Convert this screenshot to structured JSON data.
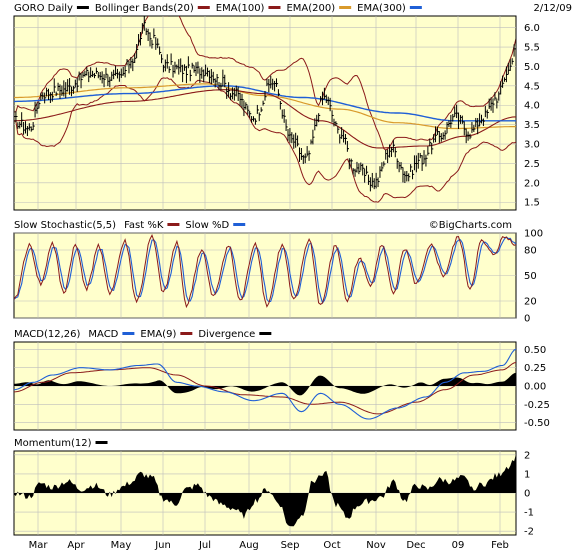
{
  "chart_data": {
    "type": "line",
    "date": "2/12/09",
    "watermark": "©BigCharts.com",
    "x_labels": [
      "Mar",
      "Apr",
      "May",
      "Jun",
      "Jul",
      "Aug",
      "Sep",
      "Oct",
      "Nov",
      "Dec",
      "09",
      "Feb"
    ],
    "colors": {
      "panel_bg": "#ffffcc",
      "grid": "#bdbdbd",
      "bollinger": "#8b1a1a",
      "ema100": "#8b1a1a",
      "ema200": "#d99a2b",
      "ema300": "#1f5fd6",
      "fast_k": "#8b1a1a",
      "slow_d": "#1f5fd6",
      "macd": "#1f5fd6",
      "macd_ema": "#8b1a1a",
      "divergence": "#000000",
      "momentum": "#000000"
    },
    "panels": [
      {
        "id": "price",
        "legend": [
          {
            "text": "GORO Daily",
            "swatch": "#000000"
          },
          {
            "text": "Bollinger Bands(20)",
            "swatch": "#8b1a1a"
          },
          {
            "text": "EMA(100)",
            "swatch": "#8b1a1a"
          },
          {
            "text": "EMA(200)",
            "swatch": "#d99a2b"
          },
          {
            "text": "EMA(300)",
            "swatch": "#1f5fd6"
          }
        ],
        "ymin": 1.3,
        "ymax": 6.3,
        "ticks": [
          1.5,
          2.0,
          2.5,
          3.0,
          3.5,
          4.0,
          4.5,
          5.0,
          5.5,
          6.0
        ],
        "tick_labels": [
          "1.5",
          "2.0",
          "2.5",
          "3.0",
          "3.5",
          "4.0",
          "4.5",
          "5.0",
          "5.5",
          "6.0"
        ],
        "close_anchors": [
          [
            0,
            3.6
          ],
          [
            8,
            3.4
          ],
          [
            15,
            4.3
          ],
          [
            25,
            4.4
          ],
          [
            40,
            4.8
          ],
          [
            55,
            4.7
          ],
          [
            62,
            5.2
          ],
          [
            68,
            6.0
          ],
          [
            72,
            5.7
          ],
          [
            80,
            5.0
          ],
          [
            90,
            4.9
          ],
          [
            100,
            4.9
          ],
          [
            108,
            4.6
          ],
          [
            115,
            4.3
          ],
          [
            125,
            3.7
          ],
          [
            135,
            4.6
          ],
          [
            145,
            3.1
          ],
          [
            152,
            2.6
          ],
          [
            162,
            4.2
          ],
          [
            170,
            3.3
          ],
          [
            178,
            2.4
          ],
          [
            188,
            2.0
          ],
          [
            197,
            2.9
          ],
          [
            205,
            2.2
          ],
          [
            212,
            2.6
          ],
          [
            222,
            3.2
          ],
          [
            230,
            3.7
          ],
          [
            238,
            3.3
          ],
          [
            245,
            3.7
          ],
          [
            252,
            4.2
          ],
          [
            258,
            4.9
          ],
          [
            262,
            5.6
          ]
        ],
        "ema300_anchors": [
          [
            0,
            4.1
          ],
          [
            60,
            4.3
          ],
          [
            110,
            4.5
          ],
          [
            150,
            4.2
          ],
          [
            200,
            3.8
          ],
          [
            230,
            3.6
          ],
          [
            262,
            3.6
          ]
        ],
        "ema200_anchors": [
          [
            0,
            4.2
          ],
          [
            60,
            4.45
          ],
          [
            100,
            4.55
          ],
          [
            130,
            4.25
          ],
          [
            170,
            3.9
          ],
          [
            200,
            3.55
          ],
          [
            230,
            3.4
          ],
          [
            262,
            3.45
          ]
        ],
        "ema100_anchors": [
          [
            0,
            3.6
          ],
          [
            60,
            4.1
          ],
          [
            110,
            4.4
          ],
          [
            130,
            4.3
          ],
          [
            160,
            3.6
          ],
          [
            190,
            2.9
          ],
          [
            215,
            2.95
          ],
          [
            235,
            3.2
          ],
          [
            262,
            3.7
          ]
        ]
      },
      {
        "id": "stochastic",
        "legend": [
          {
            "text": "Slow Stochastic(5,5)",
            "swatch": null
          },
          {
            "text": "Fast %K",
            "swatch": "#8b1a1a"
          },
          {
            "text": "Slow %D",
            "swatch": "#1f5fd6"
          }
        ],
        "ymin": 0,
        "ymax": 100,
        "ticks": [
          0,
          20,
          50,
          80,
          100
        ],
        "tick_labels": [
          "0",
          "20",
          "50",
          "80",
          "100"
        ],
        "cycles": [
          [
            0,
            20
          ],
          [
            8,
            85
          ],
          [
            14,
            40
          ],
          [
            20,
            88
          ],
          [
            26,
            30
          ],
          [
            32,
            85
          ],
          [
            38,
            35
          ],
          [
            44,
            85
          ],
          [
            50,
            30
          ],
          [
            58,
            90
          ],
          [
            64,
            20
          ],
          [
            72,
            95
          ],
          [
            78,
            30
          ],
          [
            85,
            88
          ],
          [
            90,
            15
          ],
          [
            98,
            80
          ],
          [
            104,
            25
          ],
          [
            112,
            85
          ],
          [
            118,
            20
          ],
          [
            126,
            88
          ],
          [
            132,
            15
          ],
          [
            140,
            85
          ],
          [
            146,
            20
          ],
          [
            154,
            92
          ],
          [
            160,
            15
          ],
          [
            168,
            85
          ],
          [
            174,
            20
          ],
          [
            180,
            70
          ],
          [
            186,
            40
          ],
          [
            192,
            85
          ],
          [
            198,
            30
          ],
          [
            204,
            80
          ],
          [
            210,
            40
          ],
          [
            218,
            85
          ],
          [
            224,
            50
          ],
          [
            232,
            95
          ],
          [
            238,
            35
          ],
          [
            244,
            90
          ],
          [
            250,
            75
          ],
          [
            256,
            95
          ],
          [
            262,
            88
          ]
        ]
      },
      {
        "id": "macd",
        "legend": [
          {
            "text": "MACD(12,26)",
            "swatch": null
          },
          {
            "text": "MACD",
            "swatch": "#1f5fd6"
          },
          {
            "text": "EMA(9)",
            "swatch": "#8b1a1a"
          },
          {
            "text": "Divergence",
            "swatch": "#000000"
          }
        ],
        "ymin": -0.6,
        "ymax": 0.6,
        "ticks": [
          -0.5,
          -0.25,
          0.0,
          0.25,
          0.5
        ],
        "tick_labels": [
          "-0.50",
          "-0.25",
          "0.00",
          "0.25",
          "0.50"
        ],
        "macd_anchors": [
          [
            0,
            -0.05
          ],
          [
            10,
            0.05
          ],
          [
            20,
            0.15
          ],
          [
            35,
            0.25
          ],
          [
            50,
            0.22
          ],
          [
            65,
            0.28
          ],
          [
            75,
            0.3
          ],
          [
            85,
            0.05
          ],
          [
            95,
            0.0
          ],
          [
            110,
            -0.08
          ],
          [
            125,
            -0.2
          ],
          [
            140,
            -0.1
          ],
          [
            150,
            -0.35
          ],
          [
            160,
            -0.1
          ],
          [
            170,
            -0.25
          ],
          [
            185,
            -0.45
          ],
          [
            200,
            -0.3
          ],
          [
            215,
            -0.15
          ],
          [
            225,
            0.05
          ],
          [
            235,
            0.18
          ],
          [
            245,
            0.2
          ],
          [
            255,
            0.28
          ],
          [
            262,
            0.5
          ]
        ],
        "signal_anchors": [
          [
            0,
            -0.08
          ],
          [
            15,
            0.05
          ],
          [
            30,
            0.18
          ],
          [
            50,
            0.22
          ],
          [
            70,
            0.25
          ],
          [
            85,
            0.15
          ],
          [
            100,
            0.0
          ],
          [
            120,
            -0.12
          ],
          [
            140,
            -0.15
          ],
          [
            155,
            -0.25
          ],
          [
            170,
            -0.22
          ],
          [
            190,
            -0.38
          ],
          [
            210,
            -0.22
          ],
          [
            225,
            -0.05
          ],
          [
            240,
            0.15
          ],
          [
            255,
            0.22
          ],
          [
            262,
            0.32
          ]
        ]
      },
      {
        "id": "momentum",
        "legend": [
          {
            "text": "Momentum(12)",
            "swatch": "#000000"
          }
        ],
        "ymin": -2.2,
        "ymax": 2.2,
        "ticks": [
          -2,
          -1,
          0,
          1,
          2
        ],
        "tick_labels": [
          "-2",
          "-1",
          "0",
          "1",
          "2"
        ],
        "mom_anchors": [
          [
            0,
            0.0
          ],
          [
            8,
            -0.2
          ],
          [
            14,
            0.5
          ],
          [
            20,
            0.3
          ],
          [
            28,
            0.6
          ],
          [
            35,
            0.2
          ],
          [
            42,
            0.4
          ],
          [
            50,
            -0.1
          ],
          [
            56,
            0.3
          ],
          [
            62,
            0.6
          ],
          [
            66,
            1.0
          ],
          [
            72,
            0.8
          ],
          [
            78,
            -0.3
          ],
          [
            84,
            -0.6
          ],
          [
            90,
            0.2
          ],
          [
            96,
            0.4
          ],
          [
            102,
            -0.2
          ],
          [
            108,
            -0.6
          ],
          [
            114,
            -0.8
          ],
          [
            120,
            -1.2
          ],
          [
            126,
            -0.4
          ],
          [
            132,
            0.2
          ],
          [
            138,
            -0.5
          ],
          [
            144,
            -1.8
          ],
          [
            150,
            -1.2
          ],
          [
            156,
            0.6
          ],
          [
            162,
            1.1
          ],
          [
            168,
            -0.6
          ],
          [
            174,
            -1.3
          ],
          [
            180,
            -0.6
          ],
          [
            186,
            -0.4
          ],
          [
            192,
            -0.2
          ],
          [
            198,
            0.6
          ],
          [
            204,
            -0.4
          ],
          [
            210,
            0.4
          ],
          [
            216,
            0.2
          ],
          [
            222,
            0.7
          ],
          [
            228,
            0.6
          ],
          [
            234,
            0.8
          ],
          [
            240,
            0.3
          ],
          [
            246,
            0.5
          ],
          [
            252,
            0.9
          ],
          [
            258,
            1.4
          ],
          [
            262,
            1.9
          ]
        ]
      }
    ]
  }
}
